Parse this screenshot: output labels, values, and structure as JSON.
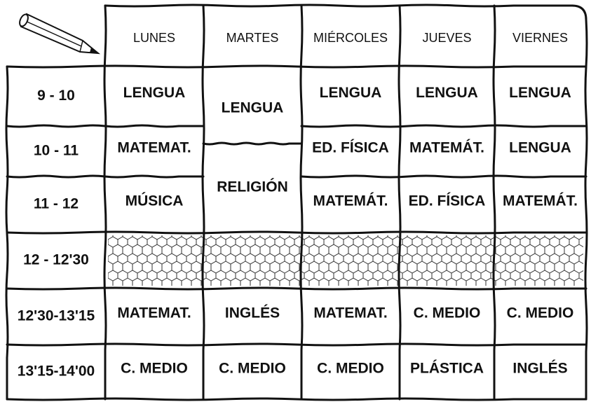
{
  "header": {
    "days": [
      "LUNES",
      "MARTES",
      "MIÉRCOLES",
      "JUEVES",
      "VIERNES"
    ]
  },
  "rows": [
    {
      "time": "9 - 10",
      "cells": [
        "LENGUA",
        "LENGUA",
        "LENGUA",
        "LENGUA",
        "LENGUA"
      ]
    },
    {
      "time": "10 - 11",
      "cells": [
        "MATEMAT.",
        "ED. FÍSICA",
        "MATEMÁT.",
        "LENGUA"
      ]
    },
    {
      "time": "11 - 12",
      "cells": [
        "MÚSICA",
        "RELIGIÓN",
        "MATEMÁT.",
        "ED. FÍSICA",
        "MATEMÁT."
      ]
    },
    {
      "time": "12 - 12'30",
      "cells": []
    },
    {
      "time": "12'30-13'15",
      "cells": [
        "MATEMAT.",
        "INGLÉS",
        "MATEMAT.",
        "C. MEDIO",
        "C. MEDIO"
      ]
    },
    {
      "time": "13'15-14'00",
      "cells": [
        "C. MEDIO",
        "C. MEDIO",
        "C. MEDIO",
        "PLÁSTICA",
        "INGLÉS"
      ]
    }
  ]
}
